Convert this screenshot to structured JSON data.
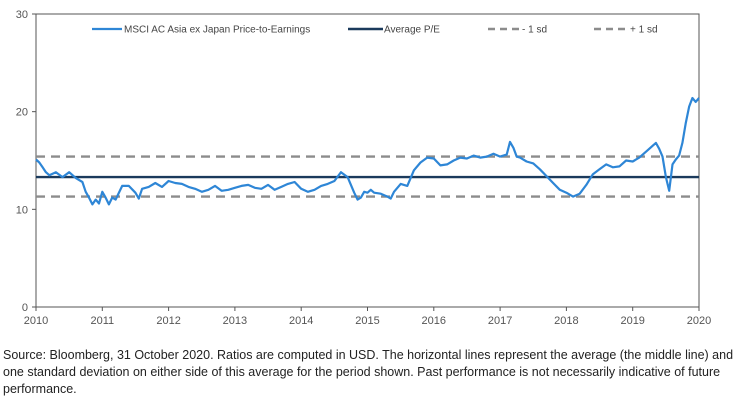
{
  "chart_data": {
    "type": "line",
    "title": "",
    "xlabel": "",
    "ylabel": "",
    "xlim": [
      2010,
      2020
    ],
    "ylim": [
      0,
      30
    ],
    "xticks": [
      "2010",
      "2011",
      "2012",
      "2013",
      "2014",
      "2015",
      "2016",
      "2017",
      "2018",
      "2019",
      "2020"
    ],
    "yticks": [
      "0",
      "10",
      "20",
      "30"
    ],
    "grid": false,
    "legend_position": "top",
    "colors": {
      "pe": "#2e86d6",
      "average": "#1b3a5c",
      "sd": "#8c8c8c"
    },
    "series": [
      {
        "name": "MSCI AC Asia ex Japan Price-to-Earnings",
        "style": "solid",
        "x": [
          2010.0,
          2010.05,
          2010.1,
          2010.15,
          2010.2,
          2010.3,
          2010.4,
          2010.5,
          2010.6,
          2010.7,
          2010.75,
          2010.8,
          2010.85,
          2010.9,
          2010.95,
          2011.0,
          2011.05,
          2011.1,
          2011.15,
          2011.2,
          2011.3,
          2011.4,
          2011.5,
          2011.55,
          2011.6,
          2011.7,
          2011.8,
          2011.9,
          2012.0,
          2012.1,
          2012.2,
          2012.3,
          2012.4,
          2012.5,
          2012.6,
          2012.7,
          2012.8,
          2012.9,
          2013.0,
          2013.1,
          2013.2,
          2013.3,
          2013.4,
          2013.5,
          2013.6,
          2013.7,
          2013.8,
          2013.9,
          2014.0,
          2014.1,
          2014.2,
          2014.3,
          2014.4,
          2014.5,
          2014.6,
          2014.7,
          2014.8,
          2014.85,
          2014.9,
          2014.95,
          2015.0,
          2015.05,
          2015.1,
          2015.2,
          2015.3,
          2015.35,
          2015.4,
          2015.5,
          2015.6,
          2015.7,
          2015.8,
          2015.9,
          2016.0,
          2016.1,
          2016.2,
          2016.3,
          2016.4,
          2016.5,
          2016.6,
          2016.7,
          2016.8,
          2016.9,
          2017.0,
          2017.1,
          2017.15,
          2017.2,
          2017.25,
          2017.3,
          2017.4,
          2017.5,
          2017.6,
          2017.7,
          2017.8,
          2017.9,
          2018.0,
          2018.1,
          2018.2,
          2018.3,
          2018.4,
          2018.5,
          2018.6,
          2018.7,
          2018.8,
          2018.9,
          2019.0,
          2019.1,
          2019.2,
          2019.3,
          2019.35,
          2019.4,
          2019.45,
          2019.5,
          2019.55,
          2019.6,
          2019.65,
          2019.7,
          2019.75,
          2019.8,
          2019.85,
          2019.9,
          2019.95,
          2020.0
        ],
        "y": [
          15.1,
          14.8,
          14.3,
          13.8,
          13.5,
          13.8,
          13.3,
          13.8,
          13.2,
          12.8,
          11.8,
          11.2,
          10.5,
          11.0,
          10.6,
          11.8,
          11.2,
          10.5,
          11.2,
          11.0,
          12.4,
          12.4,
          11.7,
          11.1,
          12.1,
          12.3,
          12.7,
          12.3,
          12.9,
          12.7,
          12.6,
          12.3,
          12.1,
          11.8,
          12.0,
          12.4,
          11.9,
          12.0,
          12.2,
          12.4,
          12.5,
          12.2,
          12.1,
          12.5,
          12.0,
          12.3,
          12.6,
          12.8,
          12.1,
          11.8,
          12.0,
          12.4,
          12.6,
          12.9,
          13.8,
          13.3,
          11.7,
          11.0,
          11.2,
          11.8,
          11.7,
          12.0,
          11.7,
          11.6,
          11.3,
          11.1,
          11.8,
          12.6,
          12.4,
          14.0,
          14.8,
          15.3,
          15.2,
          14.5,
          14.6,
          15.0,
          15.3,
          15.2,
          15.5,
          15.3,
          15.4,
          15.7,
          15.4,
          15.6,
          16.9,
          16.3,
          15.4,
          15.3,
          14.9,
          14.7,
          14.1,
          13.4,
          12.7,
          12.0,
          11.7,
          11.3,
          11.6,
          12.5,
          13.6,
          14.1,
          14.6,
          14.3,
          14.4,
          15.0,
          14.9,
          15.3,
          15.9,
          16.5,
          16.8,
          16.2,
          15.4,
          13.3,
          11.9,
          14.6,
          15.1,
          15.5,
          16.8,
          18.8,
          20.5,
          21.4,
          21.0,
          21.4
        ]
      },
      {
        "name": "Average P/E",
        "style": "solid",
        "x": [
          2010,
          2020
        ],
        "y": [
          13.3,
          13.3
        ]
      },
      {
        "name": "- 1 sd",
        "style": "dashed",
        "x": [
          2010,
          2020
        ],
        "y": [
          11.3,
          11.3
        ]
      },
      {
        "name": "+ 1 sd",
        "style": "dashed",
        "x": [
          2010,
          2020
        ],
        "y": [
          15.4,
          15.4
        ]
      }
    ]
  },
  "source_text": "Source: Bloomberg, 31 October 2020. Ratios are computed in USD. The horizontal lines represent the average (the middle line) and one standard deviation on either side of this average for the period shown. Past performance is not necessarily indicative of future performance."
}
